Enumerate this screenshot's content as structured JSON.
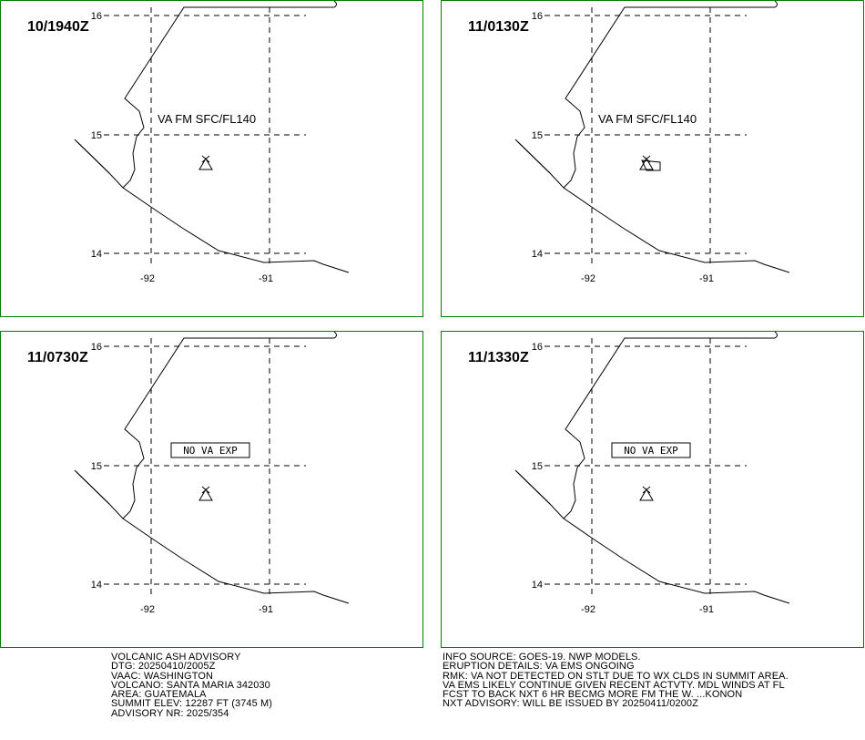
{
  "panels": [
    {
      "time": "10/1940Z",
      "annotation": "VA FM SFC/FL140"
    },
    {
      "time": "11/0130Z",
      "annotation": "VA FM SFC/FL140"
    },
    {
      "time": "11/0730Z",
      "annotation": "NO VA EXP"
    },
    {
      "time": "11/1330Z",
      "annotation": "NO VA EXP"
    }
  ],
  "latitudes": [
    "16",
    "15",
    "14"
  ],
  "longitudes": [
    "-92",
    "-91"
  ],
  "advisory_left": [
    "VOLCANIC ASH ADVISORY",
    "DTG: 20250410/2005Z",
    "VAAC: WASHINGTON",
    "VOLCANO: SANTA MARIA 342030",
    "AREA: GUATEMALA",
    "SUMMIT ELEV: 12287 FT (3745 M)",
    "ADVISORY NR: 2025/354"
  ],
  "advisory_right": [
    "INFO SOURCE: GOES-19. NWP MODELS.",
    "ERUPTION DETAILS: VA EMS ONGOING",
    "RMK: VA NOT DETECTED ON STLT DUE TO WX CLDS IN SUMMIT AREA.",
    "VA EMS LIKELY CONTINUE GIVEN RECENT ACTVTY. MDL WINDS AT FL",
    "FCST TO BACK NXT 6 HR BECMG MORE FM THE W. ...KONON",
    "NXT ADVISORY: WILL BE ISSUED BY 20250411/0200Z"
  ]
}
